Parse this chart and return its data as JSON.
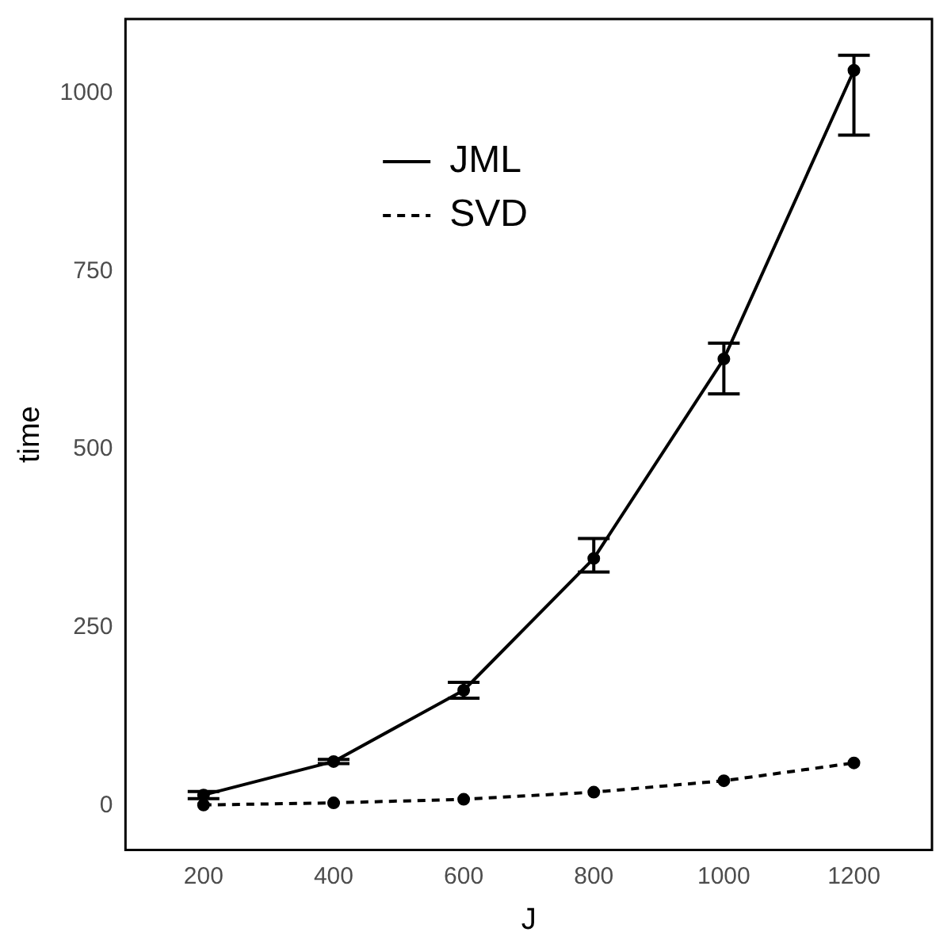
{
  "chart_data": {
    "type": "line",
    "xlabel": "J",
    "ylabel": "time",
    "x": [
      200,
      400,
      600,
      800,
      1000,
      1200
    ],
    "series": [
      {
        "name": "JML",
        "color": "#000000",
        "line_style": "solid",
        "values": [
          15,
          62,
          162,
          347,
          627,
          1032
        ],
        "errors": [
          [
            10,
            20
          ],
          [
            59,
            65
          ],
          [
            151,
            173
          ],
          [
            328,
            375
          ],
          [
            578,
            649
          ],
          [
            941,
            1053
          ]
        ]
      },
      {
        "name": "SVD",
        "color": "#000000",
        "line_style": "dashed",
        "values": [
          1,
          4,
          9,
          19,
          35,
          60
        ]
      }
    ],
    "xlim": [
      80,
      1320
    ],
    "xticks": [
      200,
      400,
      600,
      800,
      1000,
      1200
    ],
    "ylim": [
      -62,
      1104
    ],
    "yticks": [
      0,
      250,
      500,
      750,
      1000
    ],
    "grid": false,
    "legend": "top",
    "marker": "circle"
  }
}
